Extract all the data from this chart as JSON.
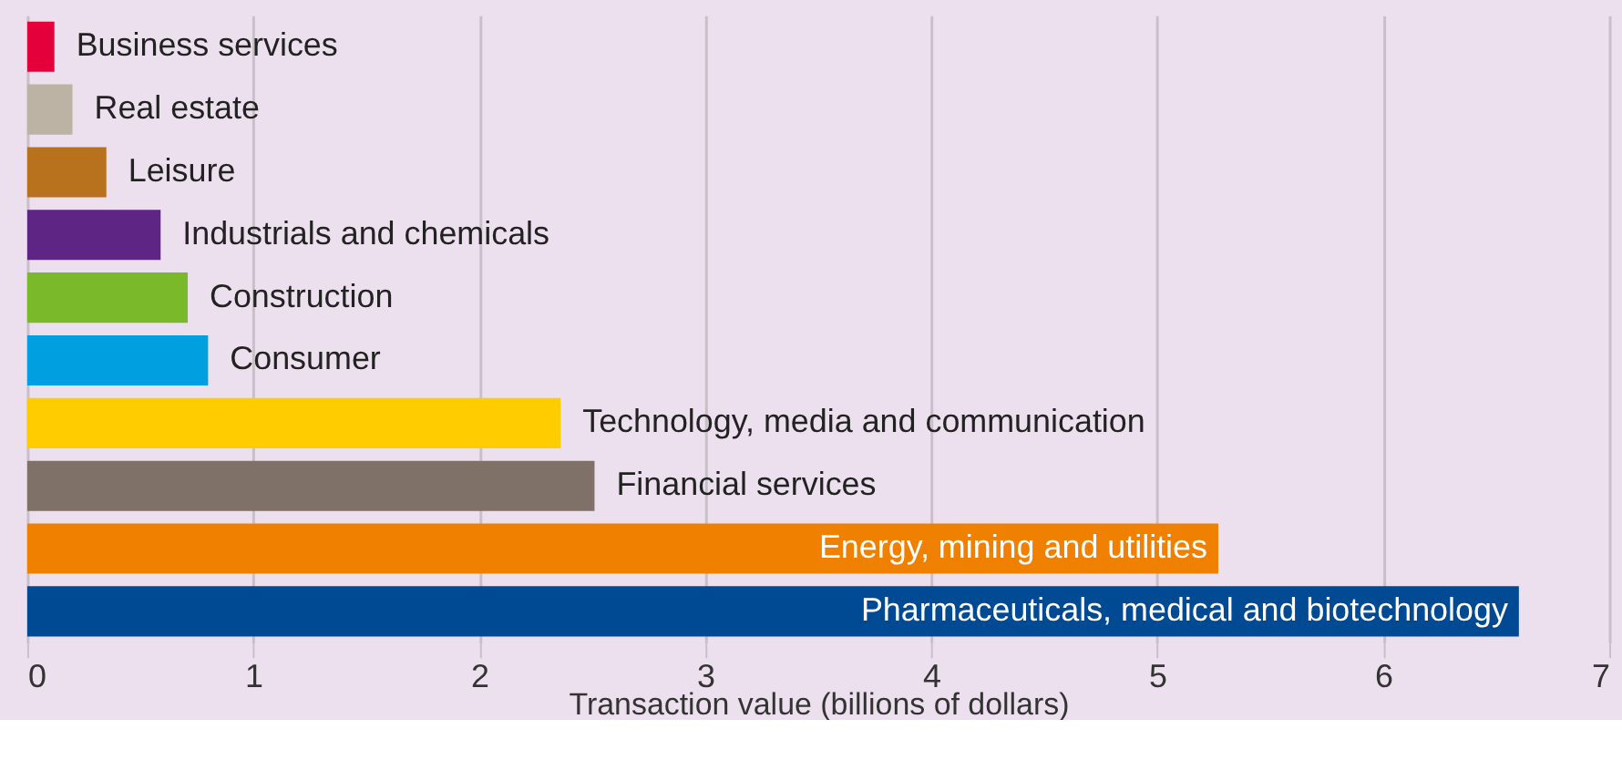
{
  "chart_data": {
    "type": "bar",
    "orientation": "horizontal",
    "xlabel": "Transaction value (billions of dollars)",
    "categories": [
      "Business services",
      "Real estate",
      "Leisure",
      "Industrials and chemicals",
      "Construction",
      "Consumer",
      "Technology, media and communication",
      "Financial services",
      "Energy, mining and utilities",
      "Pharmaceuticals, medical and biotechnology"
    ],
    "values": [
      0.12,
      0.2,
      0.35,
      0.59,
      0.71,
      0.8,
      2.36,
      2.51,
      5.27,
      6.6
    ],
    "colors": [
      "#e4003b",
      "#bcb3a5",
      "#b8711d",
      "#5e2584",
      "#7ab929",
      "#009fe0",
      "#ffcc00",
      "#7f7168",
      "#f08000",
      "#004a93"
    ],
    "xlim": [
      0,
      7
    ],
    "xticks": [
      0,
      1,
      2,
      3,
      4,
      5,
      6,
      7
    ],
    "grid": "x"
  }
}
